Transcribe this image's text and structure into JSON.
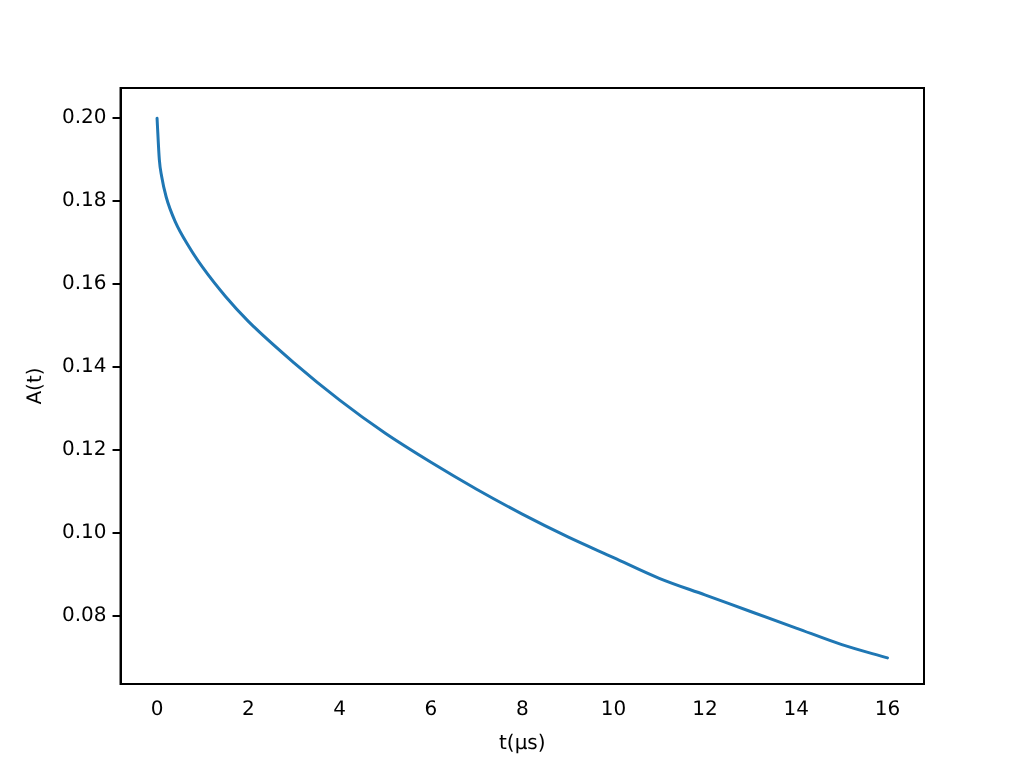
{
  "chart_data": {
    "type": "line",
    "xlabel": "t(μs)",
    "ylabel": "A(t)",
    "x": [
      0,
      0.05,
      0.1,
      0.2,
      0.4,
      0.7,
      1,
      1.5,
      2,
      3,
      4,
      5,
      6,
      7,
      8,
      9,
      10,
      11,
      12,
      13,
      14,
      15,
      16
    ],
    "series": [
      {
        "color": "#1f77b4",
        "values": [
          0.2,
          0.19,
          0.186,
          0.181,
          0.175,
          0.169,
          0.164,
          0.157,
          0.151,
          0.141,
          0.132,
          0.124,
          0.117,
          0.1105,
          0.1045,
          0.099,
          0.094,
          0.089,
          0.085,
          0.081,
          0.077,
          0.073,
          0.0698
        ]
      }
    ],
    "xlim": [
      -0.8,
      16.8
    ],
    "xticks": [
      0,
      2,
      4,
      6,
      8,
      10,
      12,
      14,
      16
    ],
    "ylim": [
      0.0635,
      0.2073
    ],
    "yticks": [
      0.08,
      {
        "value": 0.1,
        "label": "0.10"
      },
      0.12,
      0.14,
      0.16,
      0.18,
      {
        "value": 0.2,
        "label": "0.20"
      }
    ],
    "grid": false,
    "legend": false,
    "marker": "none",
    "line_style": "solid"
  }
}
